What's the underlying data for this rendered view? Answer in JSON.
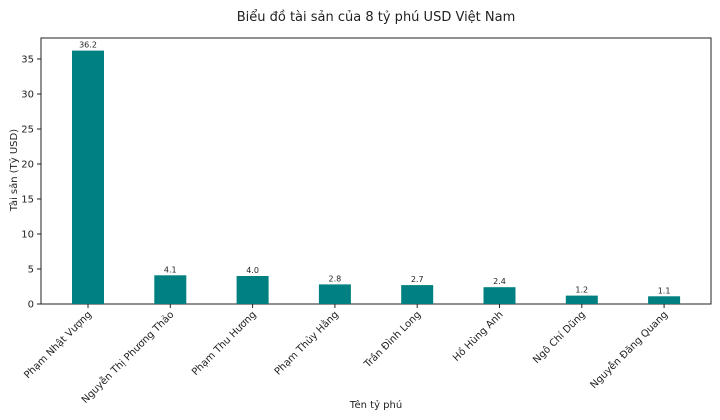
{
  "chart_data": {
    "type": "bar",
    "title": "Biểu đồ tài sản của 8 tỷ phú USD Việt Nam",
    "xlabel": "Tên tỷ phú",
    "ylabel": "Tài sản (Tỷ USD)",
    "categories": [
      "Phạm Nhật Vượng",
      "Nguyễn Thị Phương Thảo",
      "Phạm Thu Hương",
      "Phạm Thủy Hằng",
      "Trần Đình Long",
      "Hồ Hùng Anh",
      "Ngô Chí Dũng",
      "Nguyễn Đăng Quang"
    ],
    "values": [
      36.2,
      4.1,
      4.0,
      2.8,
      2.7,
      2.4,
      1.2,
      1.1
    ],
    "data_labels": [
      "36.2",
      "4.1",
      "4.0",
      "2.8",
      "2.7",
      "2.4",
      "1.2",
      "1.1"
    ],
    "yticks": [
      0,
      5,
      10,
      15,
      20,
      25,
      30,
      35
    ],
    "ylim": [
      0,
      38.0
    ],
    "bar_color": "#008080",
    "grid": false,
    "legend": "none"
  }
}
